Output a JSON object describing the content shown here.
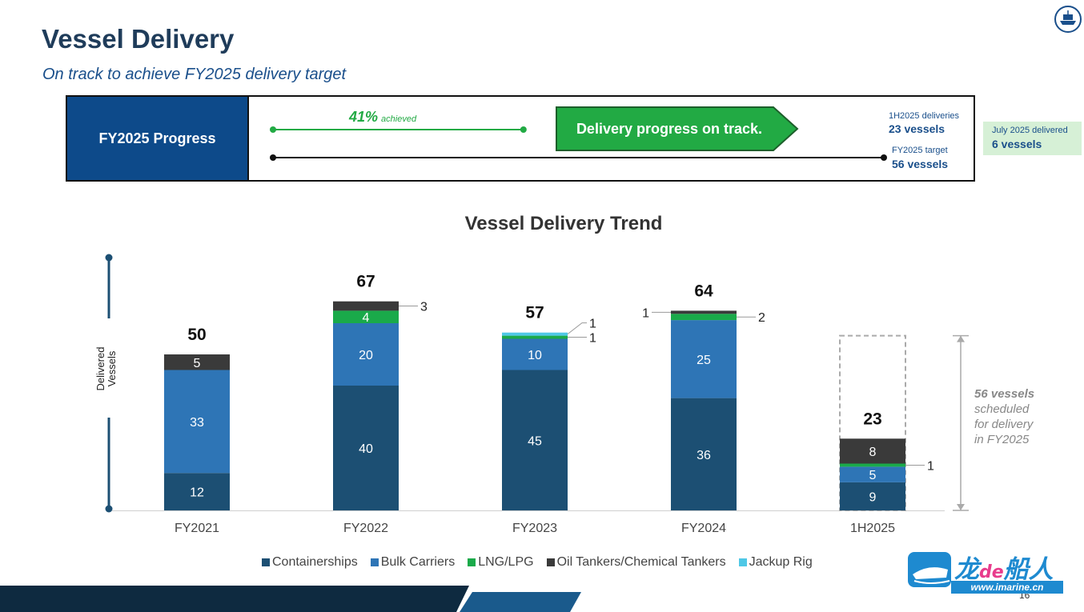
{
  "header": {
    "title": "Vessel Delivery",
    "subtitle": "On track to achieve FY2025 delivery target"
  },
  "progress": {
    "label": "FY2025 Progress",
    "achieved_pct": "41%",
    "achieved_word": "achieved",
    "achieved_fraction": 0.41,
    "status": "Delivery progress on track.",
    "h1_label": "1H2025 deliveries",
    "h1_value": "23 vessels",
    "target_label": "FY2025 target",
    "target_value": "56 vessels",
    "july_label": "July 2025 delivered",
    "july_value": "6 vessels"
  },
  "schedule_note": {
    "strong": "56 vessels",
    "rest1": "scheduled",
    "rest2": "for delivery",
    "rest3": "in FY2025"
  },
  "page_number": "16",
  "watermark": {
    "brand_a": "龙",
    "brand_b": "de",
    "brand_c": "船人",
    "url": "www.imarine.cn"
  },
  "colors": {
    "containerships": "#1c4f73",
    "bulk_carriers": "#2e75b6",
    "lng_lpg": "#1aaa4a",
    "oil_tankers": "#3a3a3a",
    "jackup_rig": "#4fc8e6"
  },
  "chart_data": {
    "type": "bar",
    "stacked": true,
    "title": "Vessel Delivery Trend",
    "ylabel": "Delivered Vessels",
    "categories": [
      "FY2021",
      "FY2022",
      "FY2023",
      "FY2024",
      "1H2025"
    ],
    "totals": [
      50,
      67,
      57,
      64,
      23
    ],
    "series": [
      {
        "name": "Containerships",
        "values": [
          12,
          40,
          45,
          36,
          9
        ]
      },
      {
        "name": "Bulk Carriers",
        "values": [
          33,
          20,
          10,
          25,
          5
        ]
      },
      {
        "name": "LNG/LPG",
        "values": [
          0,
          4,
          1,
          2,
          1
        ]
      },
      {
        "name": "Oil Tankers/Chemical Tankers",
        "values": [
          5,
          3,
          0,
          1,
          8
        ]
      },
      {
        "name": "Jackup Rig",
        "values": [
          0,
          0,
          1,
          0,
          0
        ]
      }
    ],
    "target": {
      "category": "1H2025",
      "value": 56
    },
    "ylim": [
      0,
      75
    ],
    "legend_position": "bottom"
  }
}
